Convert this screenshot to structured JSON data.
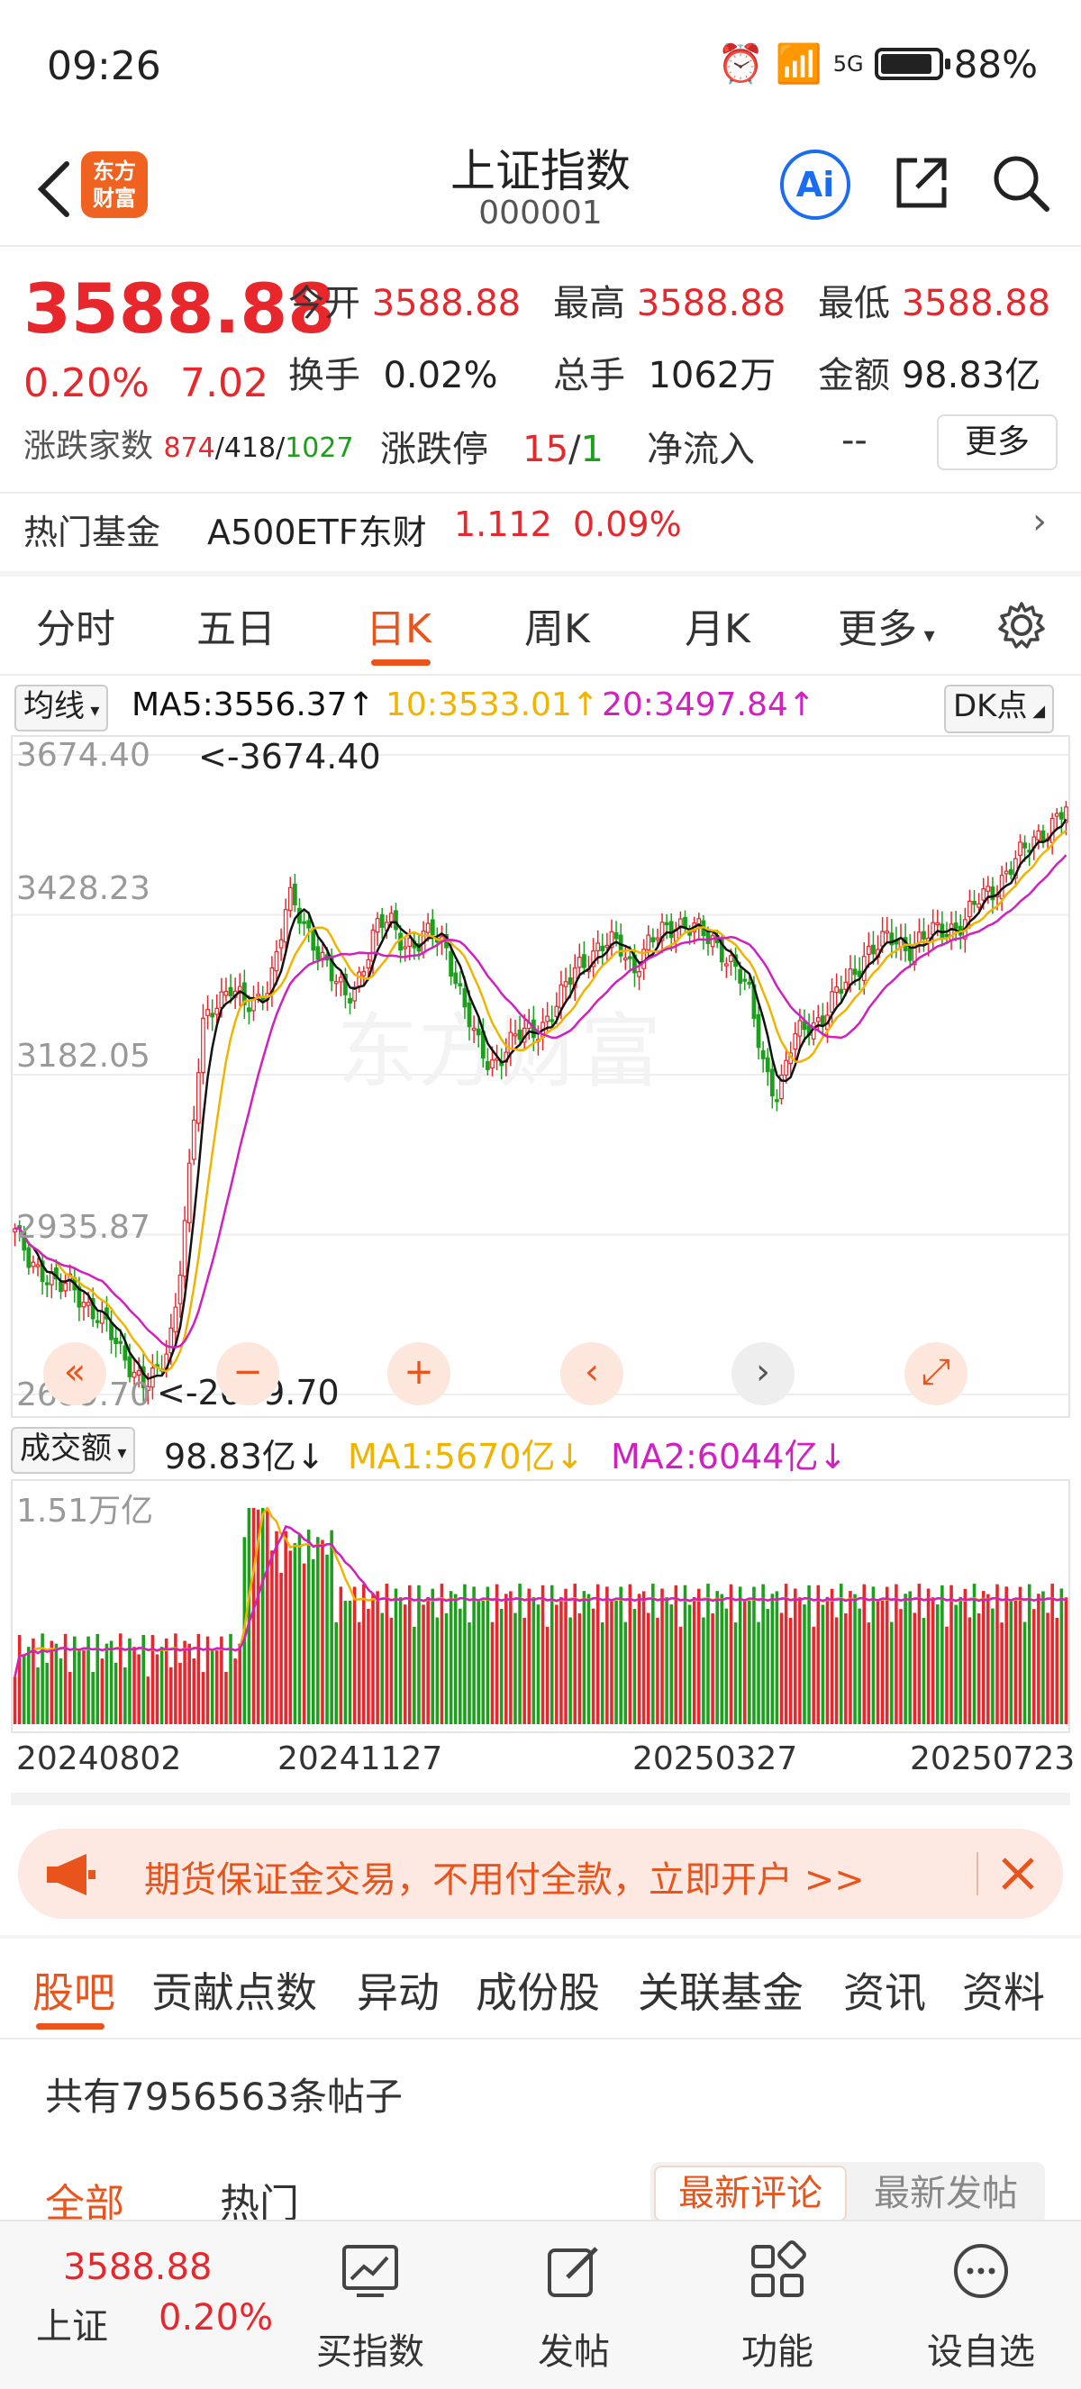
{
  "status_bar": {
    "time": "09:26",
    "network": "5G",
    "battery": "88%",
    "battery_level": 0.88
  },
  "header": {
    "title": "上证指数",
    "code": "000001",
    "logo_text": "东方财富",
    "ai_label": "Ai"
  },
  "quote": {
    "price": "3588.88",
    "change_pct": "0.20%",
    "change_abs": "7.02",
    "open_label": "今开",
    "open": "3588.88",
    "high_label": "最高",
    "high": "3588.88",
    "low_label": "最低",
    "low": "3588.88",
    "turnover_label": "换手",
    "turnover": "0.02%",
    "volume_label": "总手",
    "volume": "1062万",
    "amount_label": "金额",
    "amount": "98.83亿",
    "breadth_label": "涨跌家数",
    "up_count": "874",
    "flat_count": "418",
    "down_count": "1027",
    "limit_label": "涨跌停",
    "limit_up": "15",
    "limit_down": "1",
    "netflow_label": "净流入",
    "netflow": "--",
    "more_label": "更多"
  },
  "hot_fund": {
    "label": "热门基金",
    "name": "A500ETF东财",
    "price": "1.112",
    "change": "0.09%"
  },
  "tabs": [
    "分时",
    "五日",
    "日K",
    "周K",
    "月K",
    "更多"
  ],
  "active_tab": "日K",
  "ma_line": {
    "selector": "均线",
    "ma5": "MA5:3556.37↑",
    "ma10": "10:3533.01↑",
    "ma20": "20:3497.84↑",
    "dk": "DK点"
  },
  "colors": {
    "up": "#e8272d",
    "down": "#1ba01b",
    "accent": "#e8541c",
    "ma5": "#111111",
    "ma10": "#f0b400",
    "ma20": "#d020c0"
  },
  "chart_data": {
    "type": "candlestick",
    "y_ticks": [
      "3674.40",
      "3428.23",
      "3182.05",
      "2935.87",
      "2689.70"
    ],
    "ylim": [
      2689.7,
      3674.4
    ],
    "max_label": "<-3674.40",
    "min_label": "<-2689.70",
    "x_ticks": [
      "20240802",
      "20241127",
      "20250327",
      "20250723"
    ],
    "close_path": [
      2935,
      2900,
      2880,
      2850,
      2860,
      2830,
      2800,
      2770,
      2740,
      2700,
      2720,
      2800,
      3000,
      3250,
      3300,
      3320,
      3280,
      3300,
      3350,
      3450,
      3420,
      3380,
      3330,
      3300,
      3340,
      3400,
      3420,
      3390,
      3380,
      3400,
      3380,
      3300,
      3230,
      3200,
      3220,
      3240,
      3250,
      3270,
      3300,
      3350,
      3370,
      3380,
      3380,
      3350,
      3380,
      3400,
      3420,
      3410,
      3390,
      3380,
      3350,
      3300,
      3200,
      3150,
      3230,
      3260,
      3270,
      3300,
      3330,
      3370,
      3380,
      3390,
      3380,
      3390,
      3400,
      3410,
      3420,
      3450,
      3470,
      3500,
      3520,
      3550,
      3570,
      3588
    ]
  },
  "volume": {
    "selector": "成交额",
    "value": "98.83亿↓",
    "ma1": "MA1:5670亿↓",
    "ma2": "MA2:6044亿↓",
    "max_tick": "1.51万亿"
  },
  "chart_controls": [
    "«",
    "−",
    "+",
    "‹",
    "›",
    "⤢"
  ],
  "banner": {
    "text": "期货保证金交易，不用付全款，立即开户 >>"
  },
  "bar_tabs": [
    "股吧",
    "贡献点数",
    "异动",
    "成份股",
    "关联基金",
    "资讯",
    "资料"
  ],
  "post_count": "共有7956563条帖子",
  "filters": {
    "all": "全部",
    "hot": "热门",
    "latest_comment": "最新评论",
    "latest_post": "最新发帖"
  },
  "bottom_nav": {
    "index_price": "3588.88",
    "index_name": "上证",
    "index_change": "0.20%",
    "items": [
      "买指数",
      "发帖",
      "功能",
      "设自选"
    ]
  }
}
